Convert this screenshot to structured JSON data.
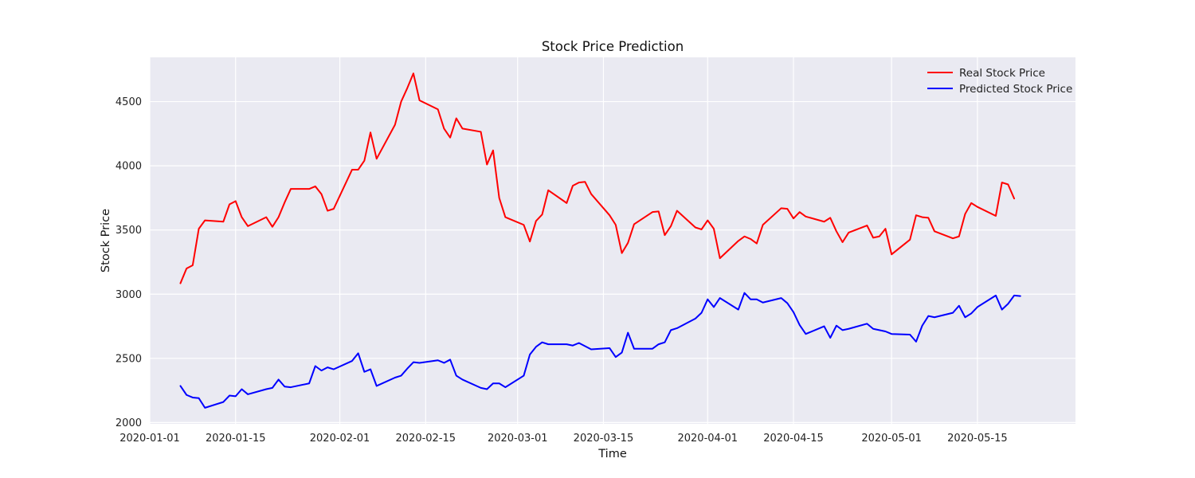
{
  "chart_data": {
    "type": "line",
    "title": "Stock Price Prediction",
    "xlabel": "Time",
    "ylabel": "Stock Price",
    "x_axis_type": "date",
    "xlim": [
      "2020-01-01",
      "2020-05-31"
    ],
    "ylim": [
      1990,
      4845
    ],
    "x_ticks": [
      "2020-01-01",
      "2020-01-15",
      "2020-02-01",
      "2020-02-15",
      "2020-03-01",
      "2020-03-15",
      "2020-04-01",
      "2020-04-15",
      "2020-05-01",
      "2020-05-15"
    ],
    "y_ticks": [
      2000,
      2500,
      3000,
      3500,
      4000,
      4500
    ],
    "grid": true,
    "style": "seaborn-darkgrid",
    "legend_position": "top-right",
    "colors": {
      "plot_background": "#eaeaf2",
      "grid": "#ffffff",
      "real": "#ff0000",
      "predicted": "#0000ff"
    },
    "series": [
      {
        "name": "Real Stock Price",
        "color": "#ff0000",
        "points": [
          [
            "2020-01-06",
            3085
          ],
          [
            "2020-01-07",
            3200
          ],
          [
            "2020-01-08",
            3225
          ],
          [
            "2020-01-09",
            3510
          ],
          [
            "2020-01-10",
            3575
          ],
          [
            "2020-01-13",
            3565
          ],
          [
            "2020-01-14",
            3700
          ],
          [
            "2020-01-15",
            3725
          ],
          [
            "2020-01-16",
            3600
          ],
          [
            "2020-01-17",
            3530
          ],
          [
            "2020-01-20",
            3600
          ],
          [
            "2020-01-21",
            3525
          ],
          [
            "2020-01-22",
            3600
          ],
          [
            "2020-01-23",
            3715
          ],
          [
            "2020-01-24",
            3820
          ],
          [
            "2020-01-27",
            3820
          ],
          [
            "2020-01-28",
            3840
          ],
          [
            "2020-01-29",
            3780
          ],
          [
            "2020-01-30",
            3650
          ],
          [
            "2020-01-31",
            3665
          ],
          [
            "2020-02-03",
            3970
          ],
          [
            "2020-02-04",
            3970
          ],
          [
            "2020-02-05",
            4040
          ],
          [
            "2020-02-06",
            4260
          ],
          [
            "2020-02-07",
            4055
          ],
          [
            "2020-02-10",
            4320
          ],
          [
            "2020-02-11",
            4500
          ],
          [
            "2020-02-12",
            4605
          ],
          [
            "2020-02-13",
            4720
          ],
          [
            "2020-02-14",
            4510
          ],
          [
            "2020-02-17",
            4440
          ],
          [
            "2020-02-18",
            4290
          ],
          [
            "2020-02-19",
            4220
          ],
          [
            "2020-02-20",
            4370
          ],
          [
            "2020-02-21",
            4290
          ],
          [
            "2020-02-24",
            4265
          ],
          [
            "2020-02-25",
            4010
          ],
          [
            "2020-02-26",
            4120
          ],
          [
            "2020-02-27",
            3750
          ],
          [
            "2020-02-28",
            3600
          ],
          [
            "2020-03-02",
            3540
          ],
          [
            "2020-03-03",
            3410
          ],
          [
            "2020-03-04",
            3570
          ],
          [
            "2020-03-05",
            3620
          ],
          [
            "2020-03-06",
            3810
          ],
          [
            "2020-03-09",
            3710
          ],
          [
            "2020-03-10",
            3845
          ],
          [
            "2020-03-11",
            3870
          ],
          [
            "2020-03-12",
            3875
          ],
          [
            "2020-03-13",
            3780
          ],
          [
            "2020-03-16",
            3615
          ],
          [
            "2020-03-17",
            3540
          ],
          [
            "2020-03-18",
            3320
          ],
          [
            "2020-03-19",
            3400
          ],
          [
            "2020-03-20",
            3545
          ],
          [
            "2020-03-23",
            3640
          ],
          [
            "2020-03-24",
            3645
          ],
          [
            "2020-03-25",
            3460
          ],
          [
            "2020-03-26",
            3530
          ],
          [
            "2020-03-27",
            3650
          ],
          [
            "2020-03-30",
            3520
          ],
          [
            "2020-03-31",
            3505
          ],
          [
            "2020-04-01",
            3575
          ],
          [
            "2020-04-02",
            3510
          ],
          [
            "2020-04-03",
            3280
          ],
          [
            "2020-04-06",
            3415
          ],
          [
            "2020-04-07",
            3450
          ],
          [
            "2020-04-08",
            3430
          ],
          [
            "2020-04-09",
            3395
          ],
          [
            "2020-04-10",
            3540
          ],
          [
            "2020-04-13",
            3670
          ],
          [
            "2020-04-14",
            3665
          ],
          [
            "2020-04-15",
            3590
          ],
          [
            "2020-04-16",
            3640
          ],
          [
            "2020-04-17",
            3605
          ],
          [
            "2020-04-20",
            3565
          ],
          [
            "2020-04-21",
            3595
          ],
          [
            "2020-04-22",
            3490
          ],
          [
            "2020-04-23",
            3405
          ],
          [
            "2020-04-24",
            3480
          ],
          [
            "2020-04-27",
            3535
          ],
          [
            "2020-04-28",
            3440
          ],
          [
            "2020-04-29",
            3450
          ],
          [
            "2020-04-30",
            3510
          ],
          [
            "2020-05-01",
            3310
          ],
          [
            "2020-05-04",
            3425
          ],
          [
            "2020-05-05",
            3615
          ],
          [
            "2020-05-06",
            3600
          ],
          [
            "2020-05-07",
            3595
          ],
          [
            "2020-05-08",
            3490
          ],
          [
            "2020-05-11",
            3435
          ],
          [
            "2020-05-12",
            3450
          ],
          [
            "2020-05-13",
            3625
          ],
          [
            "2020-05-14",
            3710
          ],
          [
            "2020-05-15",
            3680
          ],
          [
            "2020-05-18",
            3610
          ],
          [
            "2020-05-19",
            3870
          ],
          [
            "2020-05-20",
            3855
          ],
          [
            "2020-05-21",
            3745
          ]
        ]
      },
      {
        "name": "Predicted Stock Price",
        "color": "#0000ff",
        "points": [
          [
            "2020-01-06",
            2285
          ],
          [
            "2020-01-07",
            2215
          ],
          [
            "2020-01-08",
            2195
          ],
          [
            "2020-01-09",
            2190
          ],
          [
            "2020-01-10",
            2115
          ],
          [
            "2020-01-13",
            2160
          ],
          [
            "2020-01-14",
            2210
          ],
          [
            "2020-01-15",
            2205
          ],
          [
            "2020-01-16",
            2260
          ],
          [
            "2020-01-17",
            2220
          ],
          [
            "2020-01-20",
            2260
          ],
          [
            "2020-01-21",
            2270
          ],
          [
            "2020-01-22",
            2335
          ],
          [
            "2020-01-23",
            2280
          ],
          [
            "2020-01-24",
            2275
          ],
          [
            "2020-01-27",
            2305
          ],
          [
            "2020-01-28",
            2440
          ],
          [
            "2020-01-29",
            2405
          ],
          [
            "2020-01-30",
            2430
          ],
          [
            "2020-01-31",
            2415
          ],
          [
            "2020-02-03",
            2480
          ],
          [
            "2020-02-04",
            2540
          ],
          [
            "2020-02-05",
            2395
          ],
          [
            "2020-02-06",
            2415
          ],
          [
            "2020-02-07",
            2285
          ],
          [
            "2020-02-10",
            2350
          ],
          [
            "2020-02-11",
            2365
          ],
          [
            "2020-02-12",
            2420
          ],
          [
            "2020-02-13",
            2470
          ],
          [
            "2020-02-14",
            2465
          ],
          [
            "2020-02-17",
            2485
          ],
          [
            "2020-02-18",
            2465
          ],
          [
            "2020-02-19",
            2490
          ],
          [
            "2020-02-20",
            2365
          ],
          [
            "2020-02-21",
            2335
          ],
          [
            "2020-02-24",
            2270
          ],
          [
            "2020-02-25",
            2260
          ],
          [
            "2020-02-26",
            2305
          ],
          [
            "2020-02-27",
            2305
          ],
          [
            "2020-02-28",
            2275
          ],
          [
            "2020-03-02",
            2365
          ],
          [
            "2020-03-03",
            2530
          ],
          [
            "2020-03-04",
            2590
          ],
          [
            "2020-03-05",
            2625
          ],
          [
            "2020-03-06",
            2610
          ],
          [
            "2020-03-09",
            2610
          ],
          [
            "2020-03-10",
            2600
          ],
          [
            "2020-03-11",
            2620
          ],
          [
            "2020-03-12",
            2595
          ],
          [
            "2020-03-13",
            2570
          ],
          [
            "2020-03-16",
            2580
          ],
          [
            "2020-03-17",
            2510
          ],
          [
            "2020-03-18",
            2545
          ],
          [
            "2020-03-19",
            2700
          ],
          [
            "2020-03-20",
            2575
          ],
          [
            "2020-03-23",
            2575
          ],
          [
            "2020-03-24",
            2610
          ],
          [
            "2020-03-25",
            2625
          ],
          [
            "2020-03-26",
            2720
          ],
          [
            "2020-03-27",
            2735
          ],
          [
            "2020-03-30",
            2810
          ],
          [
            "2020-03-31",
            2855
          ],
          [
            "2020-04-01",
            2960
          ],
          [
            "2020-04-02",
            2900
          ],
          [
            "2020-04-03",
            2970
          ],
          [
            "2020-04-06",
            2880
          ],
          [
            "2020-04-07",
            3010
          ],
          [
            "2020-04-08",
            2960
          ],
          [
            "2020-04-09",
            2960
          ],
          [
            "2020-04-10",
            2935
          ],
          [
            "2020-04-13",
            2970
          ],
          [
            "2020-04-14",
            2930
          ],
          [
            "2020-04-15",
            2860
          ],
          [
            "2020-04-16",
            2760
          ],
          [
            "2020-04-17",
            2690
          ],
          [
            "2020-04-20",
            2750
          ],
          [
            "2020-04-21",
            2660
          ],
          [
            "2020-04-22",
            2755
          ],
          [
            "2020-04-23",
            2720
          ],
          [
            "2020-04-24",
            2730
          ],
          [
            "2020-04-27",
            2770
          ],
          [
            "2020-04-28",
            2730
          ],
          [
            "2020-04-29",
            2720
          ],
          [
            "2020-04-30",
            2710
          ],
          [
            "2020-05-01",
            2690
          ],
          [
            "2020-05-04",
            2685
          ],
          [
            "2020-05-05",
            2630
          ],
          [
            "2020-05-06",
            2755
          ],
          [
            "2020-05-07",
            2830
          ],
          [
            "2020-05-08",
            2820
          ],
          [
            "2020-05-11",
            2855
          ],
          [
            "2020-05-12",
            2910
          ],
          [
            "2020-05-13",
            2820
          ],
          [
            "2020-05-14",
            2850
          ],
          [
            "2020-05-15",
            2900
          ],
          [
            "2020-05-18",
            2990
          ],
          [
            "2020-05-19",
            2880
          ],
          [
            "2020-05-20",
            2925
          ],
          [
            "2020-05-21",
            2990
          ],
          [
            "2020-05-22",
            2985
          ]
        ]
      }
    ]
  }
}
